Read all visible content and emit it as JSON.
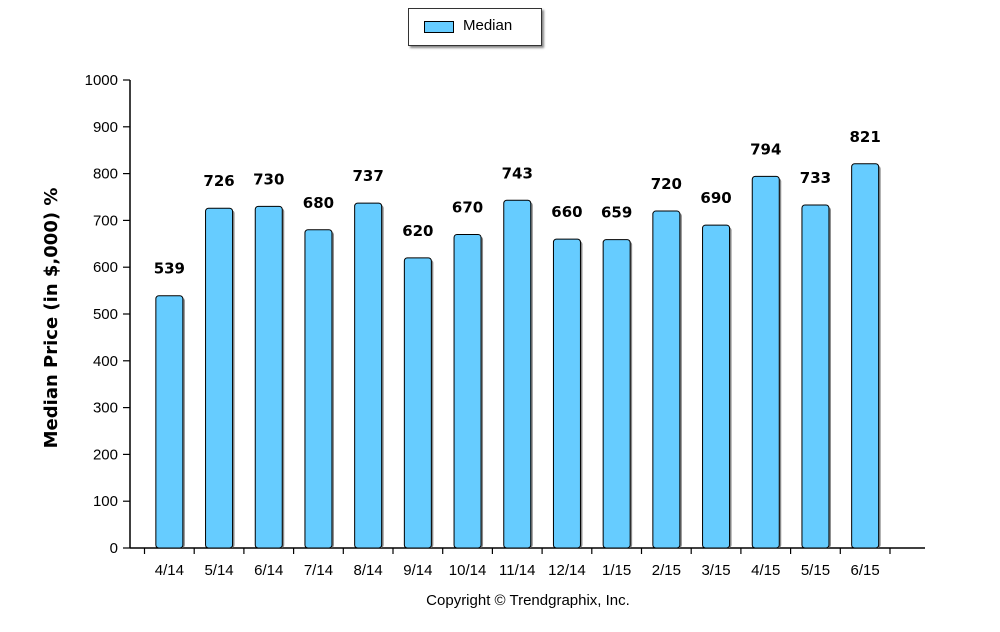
{
  "legend": {
    "label": "Median",
    "swatch_color": "#66ccff"
  },
  "copyright": "Copyright © Trendgraphix, Inc.",
  "chart_data": {
    "type": "bar",
    "ylabel": "Median Price (in $,000) %",
    "xlabel": "",
    "categories": [
      "4/14",
      "5/14",
      "6/14",
      "7/14",
      "8/14",
      "9/14",
      "10/14",
      "11/14",
      "12/14",
      "1/15",
      "2/15",
      "3/15",
      "4/15",
      "5/15",
      "6/15"
    ],
    "series": [
      {
        "name": "Median",
        "values": [
          539,
          726,
          730,
          680,
          737,
          620,
          670,
          743,
          660,
          659,
          720,
          690,
          794,
          733,
          821
        ]
      }
    ],
    "ylim": [
      0,
      1000
    ],
    "yticks": [
      0,
      100,
      200,
      300,
      400,
      500,
      600,
      700,
      800,
      900,
      1000
    ],
    "bar_color": "#66ccff",
    "grid": false,
    "legend_position": "top-center"
  }
}
